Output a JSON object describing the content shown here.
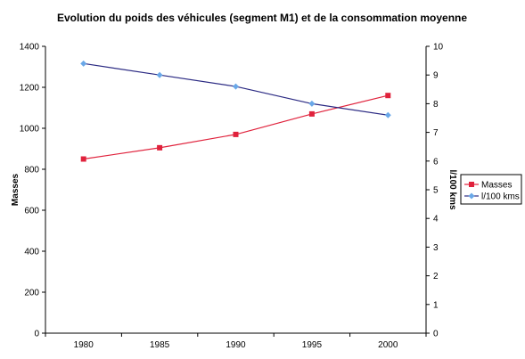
{
  "chart_data": {
    "type": "line",
    "title": "Evolution du poids des véhicules (segment M1) et de la consommation moyenne",
    "x": [
      "1980",
      "1985",
      "1990",
      "1995",
      "2000"
    ],
    "y_left": {
      "label": "Masses",
      "ylim": [
        0,
        1400
      ],
      "ticks": [
        "0",
        "200",
        "400",
        "600",
        "800",
        "1000",
        "1200",
        "1400"
      ]
    },
    "y_right": {
      "label": "l/100 kms",
      "ylim": [
        0,
        10
      ],
      "ticks": [
        "0",
        "1",
        "2",
        "3",
        "4",
        "5",
        "6",
        "7",
        "8",
        "9",
        "10"
      ]
    },
    "grid": false,
    "legend_position": "right",
    "series": [
      {
        "name": "Masses",
        "axis": "left",
        "color": "#e0223c",
        "marker": "square",
        "values": [
          850,
          905,
          970,
          1070,
          1160
        ]
      },
      {
        "name": "l/100 kms",
        "axis": "right",
        "color": "#2b2a83",
        "marker_color": "#6aa8e8",
        "marker": "diamond",
        "values": [
          9.4,
          9.0,
          8.6,
          8.0,
          7.6
        ]
      }
    ]
  }
}
